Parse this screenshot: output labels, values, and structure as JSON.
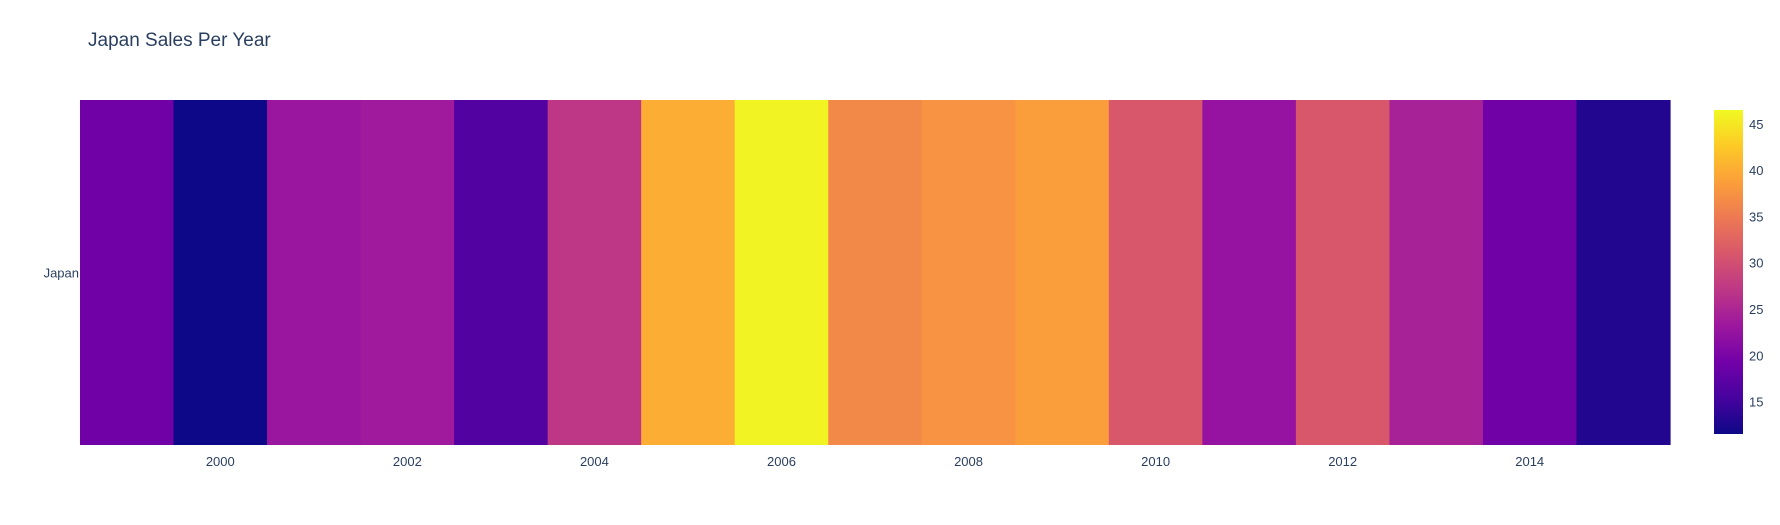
{
  "chart_data": {
    "type": "heatmap",
    "title": "Japan Sales Per Year",
    "xlabel": "",
    "ylabel": "",
    "y_categories": [
      "Japan"
    ],
    "x": [
      1999,
      2000,
      2001,
      2002,
      2003,
      2004,
      2005,
      2006,
      2007,
      2008,
      2009,
      2010,
      2011,
      2012,
      2013,
      2014,
      2015
    ],
    "x_tick_labels": [
      "2000",
      "2002",
      "2004",
      "2006",
      "2008",
      "2010",
      "2012",
      "2014"
    ],
    "values": [
      19,
      11.5,
      23,
      23.5,
      16.5,
      27,
      40,
      46,
      36.5,
      37.5,
      38.5,
      31,
      22.5,
      31,
      24.5,
      19,
      13
    ],
    "zlim": [
      11.5,
      46.5
    ],
    "colorbar_ticks": [
      15,
      20,
      25,
      30,
      35,
      40,
      45
    ],
    "colorscale": "plasma"
  }
}
